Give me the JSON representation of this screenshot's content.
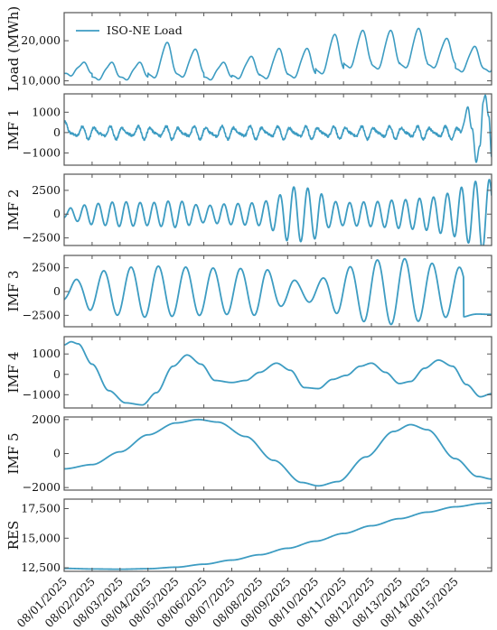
{
  "colors": {
    "series": "#3d9cc2",
    "frame": "#555555",
    "text": "#111111"
  },
  "chart_data": {
    "type": "line",
    "x_tick_labels": [
      "08/01/2025",
      "08/02/2025",
      "08/03/2025",
      "08/04/2025",
      "08/05/2025",
      "08/06/2025",
      "08/07/2025",
      "08/08/2025",
      "08/09/2025",
      "08/10/2025",
      "08/11/2025",
      "08/12/2025",
      "08/13/2025",
      "08/14/2025",
      "08/15/2025"
    ],
    "x_start": "2025-08-01",
    "x_end": "2025-08-16",
    "legend": {
      "label": "ISO-NE Load",
      "placement": "top-left"
    },
    "panels": [
      {
        "ylabel": "Load (MWh)",
        "ylim": [
          9000,
          27000
        ],
        "yticks": [
          10000,
          20000
        ],
        "ytick_labels": [
          "10,000",
          "20,000"
        ],
        "series_name": "ISO-NE Load",
        "daily_peaks": [
          14500,
          14500,
          14500,
          19500,
          17800,
          14500,
          16000,
          18000,
          18000,
          21500,
          22500,
          22500,
          23000,
          20500,
          18500
        ],
        "daily_troughs": [
          11500,
          10500,
          10500,
          11000,
          11200,
          10500,
          10800,
          10800,
          11000,
          12000,
          13500,
          13200,
          13500,
          13500,
          12500
        ]
      },
      {
        "ylabel": "IMF 1",
        "ylim": [
          -1600,
          1900
        ],
        "yticks": [
          -1000,
          0,
          1000
        ],
        "ytick_labels": [
          "−1000",
          "0",
          "1000"
        ],
        "components": [
          {
            "period_days": 0.5,
            "amplitude": 220,
            "phase": 0.0
          },
          {
            "period_days": 0.333,
            "amplitude": 120,
            "phase": 1.2
          }
        ],
        "end_burst": [
          {
            "x": 14.2,
            "y": 0
          },
          {
            "x": 14.45,
            "y": 1200
          },
          {
            "x": 14.6,
            "y": 200
          },
          {
            "x": 14.75,
            "y": -1400
          },
          {
            "x": 14.88,
            "y": -700
          },
          {
            "x": 15.0,
            "y": 1500
          },
          {
            "x": 15.08,
            "y": 1800
          },
          {
            "x": 15.2,
            "y": 800
          },
          {
            "x": 15.3,
            "y": -1200
          }
        ]
      },
      {
        "ylabel": "IMF 2",
        "ylim": [
          -3300,
          4200
        ],
        "yticks": [
          -2500,
          0,
          2500
        ],
        "ytick_labels": [
          "−2500",
          "0",
          "2500"
        ],
        "period_days": 0.5,
        "envelope": [
          {
            "x": 0,
            "y": 400
          },
          {
            "x": 0.3,
            "y": 700
          },
          {
            "x": 1,
            "y": 1100
          },
          {
            "x": 2,
            "y": 1300
          },
          {
            "x": 3,
            "y": 1200
          },
          {
            "x": 4,
            "y": 1400
          },
          {
            "x": 5,
            "y": 900
          },
          {
            "x": 6,
            "y": 1100
          },
          {
            "x": 7,
            "y": 1200
          },
          {
            "x": 7.6,
            "y": 1800
          },
          {
            "x": 8,
            "y": 2800
          },
          {
            "x": 8.4,
            "y": 2900
          },
          {
            "x": 9,
            "y": 2600
          },
          {
            "x": 9.5,
            "y": 1400
          },
          {
            "x": 10,
            "y": 1200
          },
          {
            "x": 11,
            "y": 1300
          },
          {
            "x": 12,
            "y": 1500
          },
          {
            "x": 13,
            "y": 1700
          },
          {
            "x": 13.8,
            "y": 2200
          },
          {
            "x": 14.4,
            "y": 3000
          },
          {
            "x": 15,
            "y": 3800
          },
          {
            "x": 15.3,
            "y": 3600
          }
        ]
      },
      {
        "ylabel": "IMF 3",
        "ylim": [
          -3700,
          3800
        ],
        "yticks": [
          -2500,
          0,
          2500
        ],
        "ytick_labels": [
          "−2500",
          "0",
          "2500"
        ],
        "period_days": 0.98,
        "envelope": [
          {
            "x": 0,
            "y": 900
          },
          {
            "x": 0.5,
            "y": 1300
          },
          {
            "x": 1,
            "y": 2000
          },
          {
            "x": 2,
            "y": 2500
          },
          {
            "x": 3,
            "y": 2700
          },
          {
            "x": 4,
            "y": 2600
          },
          {
            "x": 5,
            "y": 2500
          },
          {
            "x": 6,
            "y": 2400
          },
          {
            "x": 7,
            "y": 2500
          },
          {
            "x": 8,
            "y": 1400
          },
          {
            "x": 8.5,
            "y": 1000
          },
          {
            "x": 9,
            "y": 1200
          },
          {
            "x": 10,
            "y": 2500
          },
          {
            "x": 11,
            "y": 3300
          },
          {
            "x": 12,
            "y": 3500
          },
          {
            "x": 13,
            "y": 3000
          },
          {
            "x": 14,
            "y": 2600
          },
          {
            "x": 14.5,
            "y": 2400
          },
          {
            "x": 15.3,
            "y": 2400
          }
        ]
      },
      {
        "ylabel": "IMF 4",
        "ylim": [
          -1650,
          1850
        ],
        "yticks": [
          -1000,
          0,
          1000
        ],
        "ytick_labels": [
          "−1000",
          "0",
          "1000"
        ],
        "points": [
          {
            "x": 0.0,
            "y": 1450
          },
          {
            "x": 0.25,
            "y": 1600
          },
          {
            "x": 0.5,
            "y": 1500
          },
          {
            "x": 1.0,
            "y": 500
          },
          {
            "x": 1.6,
            "y": -800
          },
          {
            "x": 2.2,
            "y": -1400
          },
          {
            "x": 2.8,
            "y": -1500
          },
          {
            "x": 3.3,
            "y": -900
          },
          {
            "x": 3.9,
            "y": 400
          },
          {
            "x": 4.4,
            "y": 950
          },
          {
            "x": 4.9,
            "y": 500
          },
          {
            "x": 5.4,
            "y": -300
          },
          {
            "x": 6.0,
            "y": -400
          },
          {
            "x": 6.5,
            "y": -300
          },
          {
            "x": 7.0,
            "y": 100
          },
          {
            "x": 7.6,
            "y": 550
          },
          {
            "x": 8.1,
            "y": 200
          },
          {
            "x": 8.6,
            "y": -650
          },
          {
            "x": 9.1,
            "y": -700
          },
          {
            "x": 9.6,
            "y": -250
          },
          {
            "x": 10.1,
            "y": -50
          },
          {
            "x": 10.6,
            "y": 400
          },
          {
            "x": 11.0,
            "y": 550
          },
          {
            "x": 11.5,
            "y": 100
          },
          {
            "x": 12.0,
            "y": -450
          },
          {
            "x": 12.4,
            "y": -350
          },
          {
            "x": 12.9,
            "y": 300
          },
          {
            "x": 13.4,
            "y": 700
          },
          {
            "x": 13.9,
            "y": 400
          },
          {
            "x": 14.4,
            "y": -500
          },
          {
            "x": 14.9,
            "y": -1100
          },
          {
            "x": 15.3,
            "y": -950
          }
        ]
      },
      {
        "ylabel": "IMF 5",
        "ylim": [
          -2150,
          2150
        ],
        "yticks": [
          -2000,
          0,
          2000
        ],
        "ytick_labels": [
          "−2000",
          "0",
          "2000"
        ],
        "points": [
          {
            "x": 0.0,
            "y": -900
          },
          {
            "x": 1.0,
            "y": -650
          },
          {
            "x": 2.0,
            "y": 100
          },
          {
            "x": 3.0,
            "y": 1100
          },
          {
            "x": 4.0,
            "y": 1800
          },
          {
            "x": 4.8,
            "y": 2000
          },
          {
            "x": 5.5,
            "y": 1850
          },
          {
            "x": 6.5,
            "y": 1000
          },
          {
            "x": 7.5,
            "y": -400
          },
          {
            "x": 8.5,
            "y": -1700
          },
          {
            "x": 9.1,
            "y": -1900
          },
          {
            "x": 9.8,
            "y": -1650
          },
          {
            "x": 10.8,
            "y": -200
          },
          {
            "x": 11.8,
            "y": 1300
          },
          {
            "x": 12.4,
            "y": 1700
          },
          {
            "x": 13.0,
            "y": 1400
          },
          {
            "x": 14.0,
            "y": -300
          },
          {
            "x": 14.8,
            "y": -1350
          },
          {
            "x": 15.3,
            "y": -1500
          }
        ]
      },
      {
        "ylabel": "RES",
        "ylim": [
          12200,
          18300
        ],
        "yticks": [
          12500,
          15000,
          17500
        ],
        "ytick_labels": [
          "12,500",
          "15,000",
          "17,500"
        ],
        "points": [
          {
            "x": 0.0,
            "y": 12450
          },
          {
            "x": 1.0,
            "y": 12400
          },
          {
            "x": 2.0,
            "y": 12380
          },
          {
            "x": 3.0,
            "y": 12420
          },
          {
            "x": 4.0,
            "y": 12550
          },
          {
            "x": 5.0,
            "y": 12800
          },
          {
            "x": 6.0,
            "y": 13150
          },
          {
            "x": 7.0,
            "y": 13600
          },
          {
            "x": 8.0,
            "y": 14150
          },
          {
            "x": 9.0,
            "y": 14750
          },
          {
            "x": 10.0,
            "y": 15400
          },
          {
            "x": 11.0,
            "y": 16050
          },
          {
            "x": 12.0,
            "y": 16650
          },
          {
            "x": 13.0,
            "y": 17200
          },
          {
            "x": 14.0,
            "y": 17650
          },
          {
            "x": 15.0,
            "y": 17950
          },
          {
            "x": 15.3,
            "y": 18000
          }
        ]
      }
    ]
  }
}
